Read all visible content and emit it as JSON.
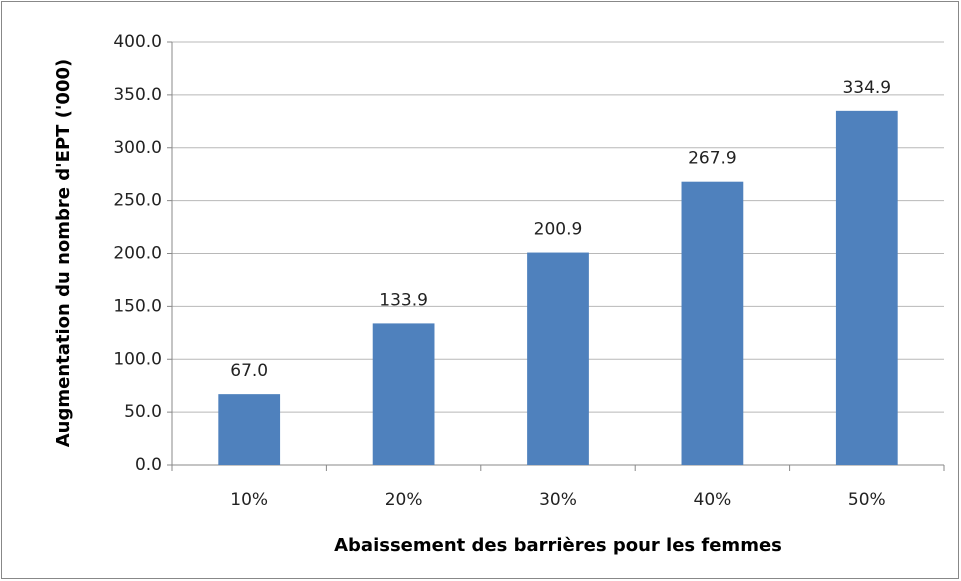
{
  "chart_data": {
    "type": "bar",
    "x_label": "Abaissement des barrières pour les femmes",
    "y_label": "Augmentation du nombre d'EPT ('000)",
    "categories": [
      "10%",
      "20%",
      "30%",
      "40%",
      "50%"
    ],
    "values": [
      67.0,
      133.9,
      200.9,
      267.9,
      334.9
    ],
    "value_labels": [
      "67.0",
      "133.9",
      "200.9",
      "267.9",
      "334.9"
    ],
    "color": "#4f81bd",
    "ylim": [
      0,
      400
    ],
    "yticks": [
      {
        "value": 0,
        "label": "0.0"
      },
      {
        "value": 50,
        "label": "50.0"
      },
      {
        "value": 100,
        "label": "100.0"
      },
      {
        "value": 150,
        "label": "150.0"
      },
      {
        "value": 200,
        "label": "200.0"
      },
      {
        "value": 250,
        "label": "250.0"
      },
      {
        "value": 300,
        "label": "300.0"
      },
      {
        "value": 350,
        "label": "350.0"
      },
      {
        "value": 400,
        "label": "400.0"
      }
    ],
    "grid": true
  }
}
